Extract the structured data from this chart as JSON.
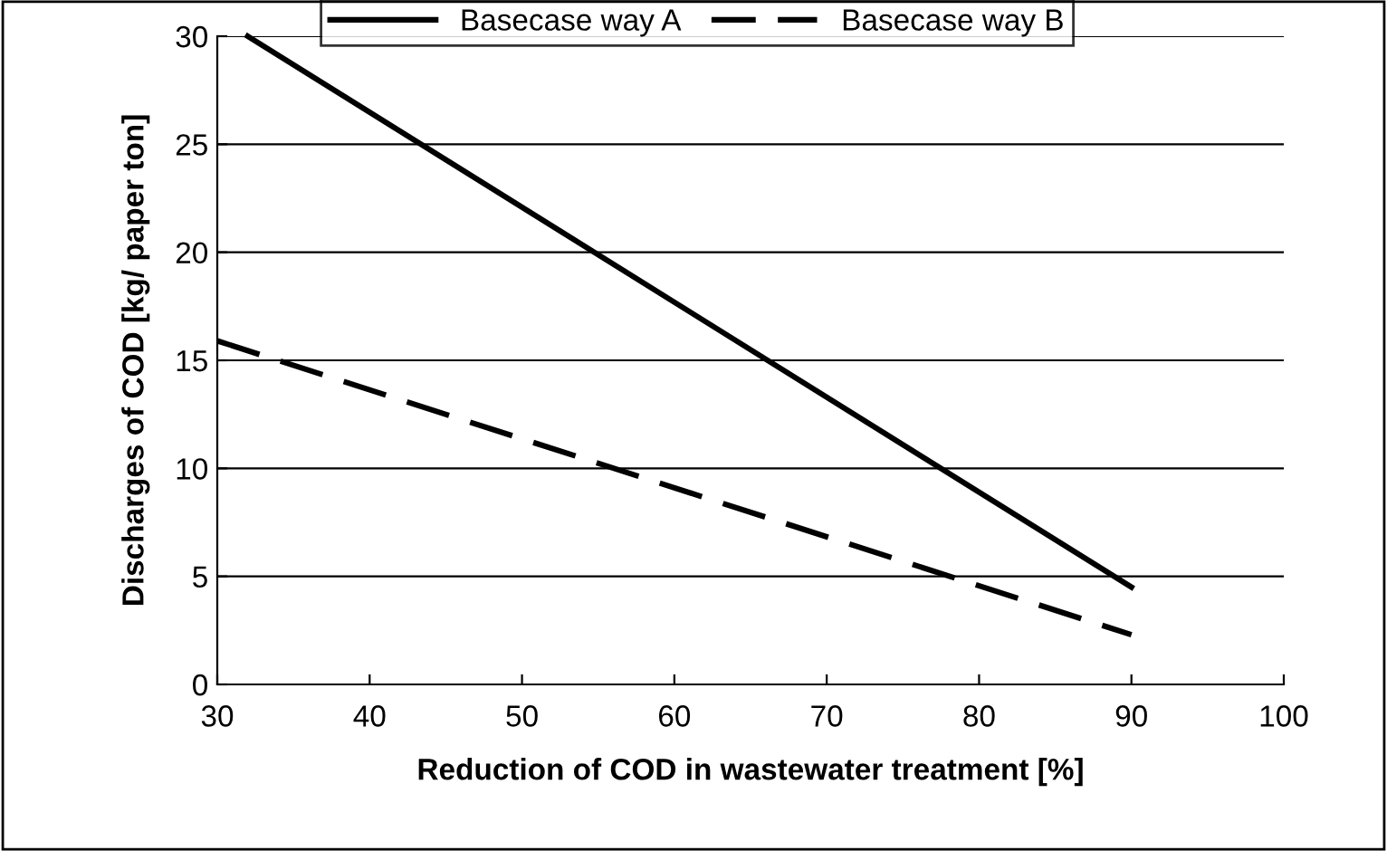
{
  "chart_data": {
    "type": "line",
    "xlabel": "Reduction of COD in wastewater treatment [%]",
    "ylabel": "Discharges of COD [kg/ paper ton]",
    "series": [
      {
        "name": "Basecase way A",
        "color": "#000000",
        "line_style": "solid",
        "x": [
          32,
          90
        ],
        "values": [
          30,
          4.5
        ]
      },
      {
        "name": "Basecase way B",
        "color": "#000000",
        "line_style": "dashed",
        "x": [
          30,
          90
        ],
        "values": [
          15.9,
          2.3
        ]
      }
    ],
    "xlim": [
      30,
      100
    ],
    "xticks": [
      30,
      40,
      50,
      60,
      70,
      80,
      90,
      100
    ],
    "ylim": [
      0,
      30
    ],
    "yticks": [
      0,
      5,
      10,
      15,
      20,
      25,
      30
    ],
    "grid": "y",
    "legend": "top",
    "marker": "none"
  }
}
